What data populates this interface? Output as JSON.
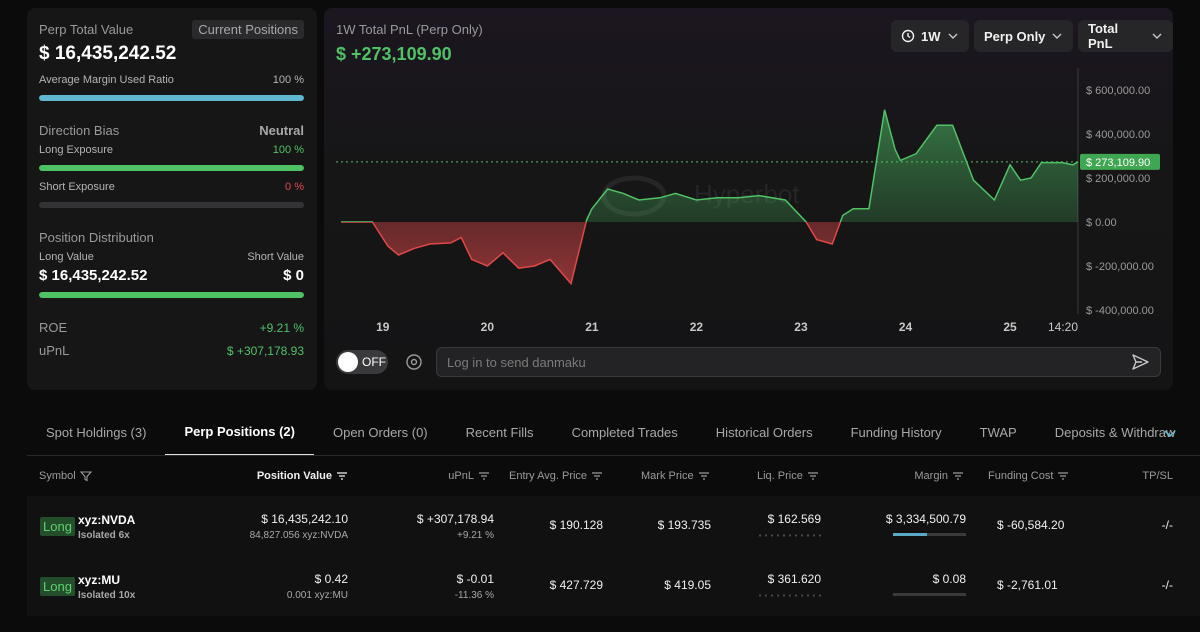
{
  "summary": {
    "perp_total_value_label": "Perp Total Value",
    "current_positions_label": "Current Positions",
    "perp_total_value": "$ 16,435,242.52",
    "avg_margin_label": "Average Margin Used Ratio",
    "avg_margin_value": "100 %",
    "avg_margin_fraction": 1.0,
    "direction_bias_label": "Direction Bias",
    "direction_bias_value": "Neutral",
    "long_exposure_label": "Long Exposure",
    "long_exposure_value": "100 %",
    "long_exposure_fraction": 1.0,
    "short_exposure_label": "Short Exposure",
    "short_exposure_value": "0 %",
    "short_exposure_fraction": 0.0,
    "position_distribution_label": "Position Distribution",
    "long_value_label": "Long Value",
    "short_value_label": "Short Value",
    "long_value": "$ 16,435,242.52",
    "short_value": "$ 0",
    "distribution_long_fraction": 1.0,
    "roe_label": "ROE",
    "roe_value": "+9.21 %",
    "upnl_label": "uPnL",
    "upnl_value": "$ +307,178.93"
  },
  "chart": {
    "title": "1W Total PnL (Perp Only)",
    "value": "$ +273,109.90",
    "period_dropdown": "1W",
    "scope_dropdown": "Perp Only",
    "metric_dropdown": "Total PnL",
    "watermark": "Hyperbot",
    "toggle_label": "OFF",
    "danmaku_placeholder": "Log in to send danmaku"
  },
  "chart_data": {
    "type": "area",
    "title": "1W Total PnL (Perp Only)",
    "xlabel": "",
    "ylabel": "",
    "ylim": [
      -400000,
      600000
    ],
    "y_ticks": [
      600000,
      400000,
      200000,
      0,
      -200000,
      -400000
    ],
    "y_tick_labels": [
      "$ 600,000.00",
      "$ 400,000.00",
      "$ 200,000.00",
      "$ 0.00",
      "$ -200,000.00",
      "$ -400,000.00"
    ],
    "x_tick_positions": [
      19,
      20,
      21,
      22,
      23,
      24,
      25,
      25.65
    ],
    "x_tick_labels": [
      "19",
      "20",
      "21",
      "22",
      "23",
      "24",
      "25",
      "14:20"
    ],
    "current_value": 273109.9,
    "current_value_label": "$ 273,109.90",
    "positive_color": "#4fc266",
    "negative_color": "#e04848",
    "x": [
      18.6,
      18.9,
      19.05,
      19.15,
      19.3,
      19.45,
      19.65,
      19.75,
      19.85,
      20.0,
      20.15,
      20.3,
      20.45,
      20.6,
      20.8,
      20.95,
      21.0,
      21.15,
      21.3,
      21.45,
      21.65,
      21.8,
      22.0,
      22.2,
      22.4,
      22.6,
      22.85,
      23.05,
      23.15,
      23.3,
      23.4,
      23.5,
      23.65,
      23.8,
      23.9,
      23.95,
      24.1,
      24.3,
      24.45,
      24.65,
      24.85,
      25.0,
      25.1,
      25.2,
      25.3,
      25.5,
      25.6,
      25.65
    ],
    "values": [
      0,
      0,
      -110000,
      -150000,
      -120000,
      -100000,
      -95000,
      -70000,
      -170000,
      -200000,
      -140000,
      -210000,
      -200000,
      -170000,
      -280000,
      10000,
      60000,
      150000,
      130000,
      100000,
      110000,
      130000,
      100000,
      110000,
      110000,
      120000,
      100000,
      0,
      -80000,
      -100000,
      30000,
      60000,
      60000,
      510000,
      330000,
      280000,
      310000,
      440000,
      440000,
      190000,
      100000,
      260000,
      190000,
      200000,
      270000,
      270000,
      260000,
      273109.9
    ]
  },
  "tabs": {
    "items": [
      {
        "label": "Spot Holdings (3)"
      },
      {
        "label": "Perp Positions (2)"
      },
      {
        "label": "Open Orders (0)"
      },
      {
        "label": "Recent Fills"
      },
      {
        "label": "Completed Trades"
      },
      {
        "label": "Historical Orders"
      },
      {
        "label": "Funding History"
      },
      {
        "label": "TWAP"
      },
      {
        "label": "Deposits & Withdraw"
      }
    ]
  },
  "table": {
    "headers": {
      "symbol": "Symbol",
      "position_value": "Position Value",
      "upnl": "uPnL",
      "entry": "Entry Avg. Price",
      "mark": "Mark Price",
      "liq": "Liq. Price",
      "margin": "Margin",
      "funding": "Funding Cost",
      "tpsl": "TP/SL"
    },
    "rows": [
      {
        "side": "Long",
        "symbol": "xyz:NVDA",
        "mode": "Isolated 6x",
        "position_value": "$ 16,435,242.10",
        "position_size": "84,827.056 xyz:NVDA",
        "upnl": "$ +307,178.94",
        "upnl_pct": "+9.21 %",
        "entry": "$ 190.128",
        "mark": "$ 193.735",
        "liq": "$ 162.569",
        "margin": "$ 3,334,500.79",
        "margin_fraction": 0.47,
        "funding": "$ -60,584.20",
        "tpsl": "-/-"
      },
      {
        "side": "Long",
        "symbol": "xyz:MU",
        "mode": "Isolated 10x",
        "position_value": "$ 0.42",
        "position_size": "0.001 xyz:MU",
        "upnl": "$ -0.01",
        "upnl_pct": "-11.36 %",
        "entry": "$ 427.729",
        "mark": "$ 419.05",
        "liq": "$ 361.620",
        "margin": "$ 0.08",
        "margin_fraction": 0.0,
        "funding": "$ -2,761.01",
        "tpsl": "-/-"
      }
    ]
  }
}
